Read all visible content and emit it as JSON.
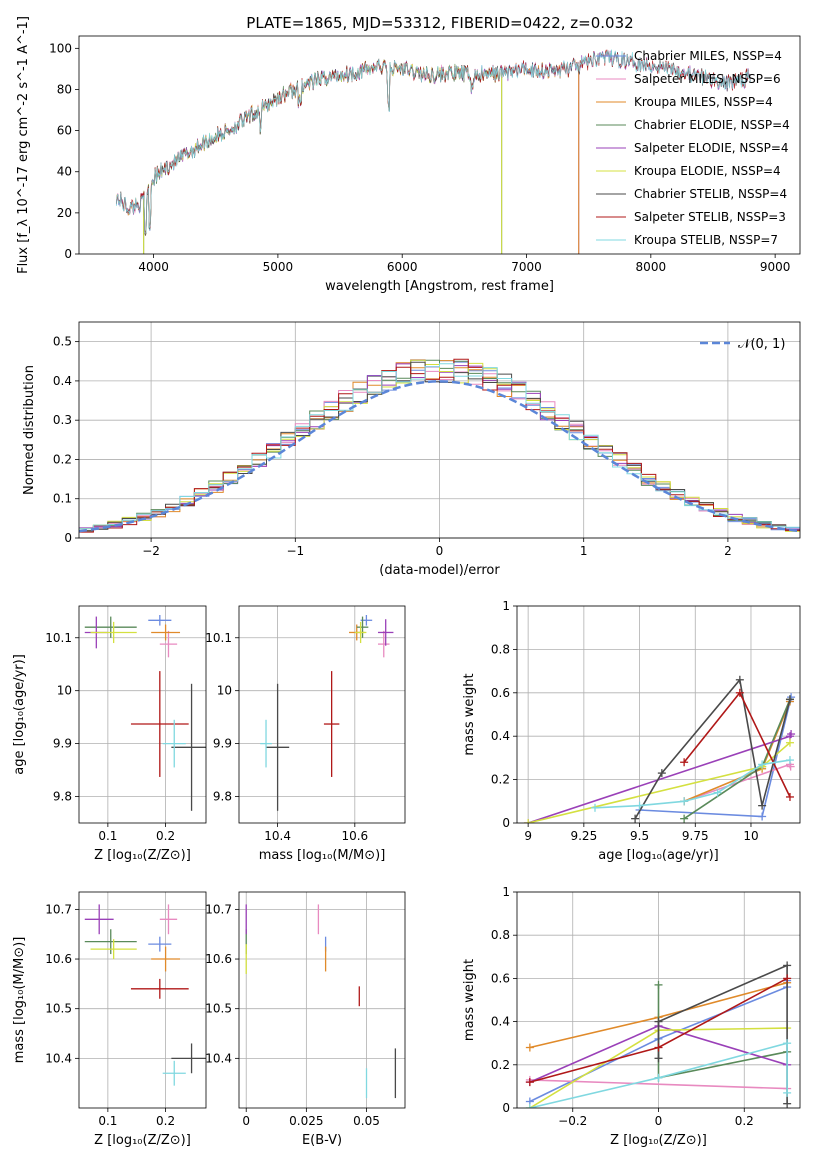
{
  "colors": {
    "chabrier_miles": "#6b8be0",
    "salpeter_miles": "#e88ac0",
    "kroupa_miles": "#e08a2a",
    "chabrier_elodie": "#5a8a5a",
    "salpeter_elodie": "#9a40b8",
    "kroupa_elodie": "#d4e040",
    "chabrier_stelib": "#4a4a4a",
    "salpeter_stelib": "#b01818",
    "kroupa_stelib": "#80d8e0",
    "gaussian": "#5b86d8",
    "grid": "#b0b0b0"
  },
  "chart_data": [
    {
      "id": "spectrum",
      "type": "line",
      "title": "PLATE=1865, MJD=53312, FIBERID=0422, z=0.032",
      "xlabel": "wavelength [Angstrom, rest frame]",
      "ylabel": "Flux [f_λ 10^-17 erg cm^-2 s^-1 A^-1]",
      "xlim": [
        3400,
        9200
      ],
      "ylim": [
        0,
        106
      ],
      "xticks": [
        4000,
        5000,
        6000,
        7000,
        8000,
        9000
      ],
      "yticks": [
        0,
        20,
        40,
        60,
        80,
        100
      ],
      "grid": false,
      "legend_position": "right",
      "series_names": [
        "Chabrier MILES, N_SSP=4",
        "Salpeter MILES, N_SSP=6",
        "Kroupa MILES, N_SSP=4",
        "Chabrier ELODIE, N_SSP=4",
        "Salpeter ELODIE, N_SSP=4",
        "Kroupa ELODIE, N_SSP=4",
        "Chabrier STELIB, N_SSP=4",
        "Salpeter STELIB, N_SSP=3",
        "Kroupa STELIB, N_SSP=7"
      ],
      "continuum": {
        "wavelength": [
          3700,
          3800,
          3900,
          4000,
          4100,
          4200,
          4400,
          4600,
          4800,
          5000,
          5200,
          5400,
          5600,
          5800,
          6000,
          6200,
          6400,
          6600,
          6800,
          7000,
          7200,
          7400,
          7600,
          7800,
          8000,
          8200,
          8400,
          8600,
          8800,
          9000
        ],
        "flux": [
          28,
          22,
          25,
          37,
          42,
          46,
          54,
          60,
          68,
          76,
          82,
          86,
          88,
          91,
          90,
          87,
          88,
          87,
          88,
          90,
          89,
          91,
          96,
          94,
          92,
          90,
          86,
          83,
          86,
          88
        ]
      },
      "model_range": {
        "Chabrier MILES, N_SSP=4": [
          3700,
          7420
        ],
        "Salpeter MILES, N_SSP=6": [
          3700,
          7420
        ],
        "Kroupa MILES, N_SSP=4": [
          3700,
          7420
        ],
        "Kroupa ELODIE, N_SSP=4": [
          3920,
          6800
        ],
        "Chabrier ELODIE, N_SSP=4": [
          3920,
          6800
        ]
      }
    },
    {
      "id": "residuals",
      "type": "step-histogram",
      "xlabel": "(data-model)/error",
      "ylabel": "Normed distribution",
      "xlim": [
        -2.5,
        2.5
      ],
      "ylim": [
        0,
        0.55
      ],
      "xticks": [
        -2,
        -1,
        0,
        1,
        2
      ],
      "yticks": [
        0.0,
        0.1,
        0.2,
        0.3,
        0.4,
        0.5
      ],
      "grid": true,
      "legend_position": "upper right",
      "bin_width": 0.1,
      "legend_label": "𝒩(0, 1)",
      "gaussian": {
        "mean": 0,
        "sigma": 1
      }
    },
    {
      "id": "age_vs_z",
      "type": "errorbar",
      "xlabel": "Z [log₁₀(Z/Z⊙)]",
      "ylabel": "age  [log₁₀(age/yr)]",
      "xlim": [
        0.05,
        0.27
      ],
      "ylim": [
        9.75,
        10.16
      ],
      "xticks": [
        0.1,
        0.2
      ],
      "yticks": [
        9.8,
        9.9,
        10.0,
        10.1
      ],
      "grid": true,
      "points": [
        {
          "series": "Chabrier MILES",
          "x": 0.19,
          "y": 10.133,
          "xerr": 0.02,
          "yerr": 0.01
        },
        {
          "series": "Salpeter MILES",
          "x": 0.205,
          "y": 10.088,
          "xerr": 0.015,
          "yerr": 0.025
        },
        {
          "series": "Kroupa MILES",
          "x": 0.2,
          "y": 10.11,
          "xerr": 0.025,
          "yerr": 0.015
        },
        {
          "series": "Chabrier ELODIE",
          "x": 0.105,
          "y": 10.12,
          "xerr": 0.045,
          "yerr": 0.02
        },
        {
          "series": "Salpeter ELODIE",
          "x": 0.08,
          "y": 10.11,
          "xerr": 0.02,
          "yerr": 0.03
        },
        {
          "series": "Kroupa ELODIE",
          "x": 0.11,
          "y": 10.11,
          "xerr": 0.04,
          "yerr": 0.02
        },
        {
          "series": "Chabrier STELIB",
          "x": 0.245,
          "y": 9.893,
          "xerr": 0.035,
          "yerr": 0.12
        },
        {
          "series": "Salpeter STELIB",
          "x": 0.19,
          "y": 9.937,
          "xerr": 0.05,
          "yerr": 0.1
        },
        {
          "series": "Kroupa STELIB",
          "x": 0.215,
          "y": 9.9,
          "xerr": 0.02,
          "yerr": 0.045
        }
      ]
    },
    {
      "id": "age_vs_mass",
      "type": "errorbar",
      "xlabel": "mass [log₁₀(M/M⊙)]",
      "ylabel": "",
      "xlim": [
        10.3,
        10.73
      ],
      "ylim": [
        9.75,
        10.16
      ],
      "xticks": [
        10.4,
        10.6
      ],
      "yticks": [
        9.8,
        9.9,
        10.0,
        10.1
      ],
      "grid": true,
      "points": [
        {
          "series": "Chabrier MILES",
          "x": 10.63,
          "y": 10.133,
          "xerr": 0.015,
          "yerr": 0.01
        },
        {
          "series": "Salpeter MILES",
          "x": 10.675,
          "y": 10.088,
          "xerr": 0.015,
          "yerr": 0.025
        },
        {
          "series": "Kroupa MILES",
          "x": 10.605,
          "y": 10.11,
          "xerr": 0.02,
          "yerr": 0.015
        },
        {
          "series": "Chabrier ELODIE",
          "x": 10.62,
          "y": 10.12,
          "xerr": 0.015,
          "yerr": 0.02
        },
        {
          "series": "Salpeter ELODIE",
          "x": 10.68,
          "y": 10.11,
          "xerr": 0.02,
          "yerr": 0.025
        },
        {
          "series": "Kroupa ELODIE",
          "x": 10.615,
          "y": 10.11,
          "xerr": 0.015,
          "yerr": 0.02
        },
        {
          "series": "Chabrier STELIB",
          "x": 10.4,
          "y": 9.893,
          "xerr": 0.03,
          "yerr": 0.12
        },
        {
          "series": "Salpeter STELIB",
          "x": 10.54,
          "y": 9.937,
          "xerr": 0.02,
          "yerr": 0.1
        },
        {
          "series": "Kroupa STELIB",
          "x": 10.37,
          "y": 9.9,
          "xerr": 0.015,
          "yerr": 0.045
        }
      ]
    },
    {
      "id": "mass_weight_vs_age",
      "type": "line",
      "xlabel": "age  [log₁₀(age/yr)]",
      "ylabel": "mass weight",
      "xlim": [
        8.95,
        10.22
      ],
      "ylim": [
        0,
        1.0
      ],
      "xticks": [
        9.0,
        9.25,
        9.5,
        9.75,
        10.0
      ],
      "yticks": [
        0.0,
        0.2,
        0.4,
        0.6,
        0.8,
        1.0
      ],
      "grid": true,
      "series": [
        {
          "name": "Chabrier MILES",
          "x": [
            9.5,
            10.05,
            10.175,
            10.18
          ],
          "y": [
            0.06,
            0.03,
            0.56,
            0.58
          ]
        },
        {
          "name": "Salpeter MILES",
          "x": [
            9.7,
            10.175,
            10.178
          ],
          "y": [
            0.1,
            0.27,
            0.26
          ]
        },
        {
          "name": "Kroupa MILES",
          "x": [
            9.7,
            10.05,
            10.175
          ],
          "y": [
            0.1,
            0.25,
            0.56
          ]
        },
        {
          "name": "Chabrier ELODIE",
          "x": [
            9.7,
            10.05,
            10.175
          ],
          "y": [
            0.02,
            0.26,
            0.57
          ]
        },
        {
          "name": "Salpeter ELODIE",
          "x": [
            9.0,
            10.175,
            10.18
          ],
          "y": [
            0.0,
            0.4,
            0.41
          ]
        },
        {
          "name": "Kroupa ELODIE",
          "x": [
            9.0,
            10.05,
            10.175
          ],
          "y": [
            0.0,
            0.26,
            0.37
          ]
        },
        {
          "name": "Chabrier STELIB",
          "x": [
            9.48,
            9.6,
            9.95,
            10.05,
            10.175
          ],
          "y": [
            0.02,
            0.23,
            0.66,
            0.08,
            0.57
          ]
        },
        {
          "name": "Salpeter STELIB",
          "x": [
            9.7,
            9.95,
            10.175
          ],
          "y": [
            0.28,
            0.6,
            0.12
          ]
        },
        {
          "name": "Kroupa STELIB",
          "x": [
            9.3,
            9.5,
            9.7,
            9.85,
            10.05,
            10.175
          ],
          "y": [
            0.07,
            0.08,
            0.1,
            0.14,
            0.27,
            0.29
          ]
        }
      ]
    },
    {
      "id": "mass_vs_z",
      "type": "errorbar",
      "xlabel": "Z [log₁₀(Z/Z⊙)]",
      "ylabel": "mass [log₁₀(M/M⊙)]",
      "xlim": [
        0.05,
        0.27
      ],
      "ylim": [
        10.3,
        10.735
      ],
      "xticks": [
        0.1,
        0.2
      ],
      "yticks": [
        10.4,
        10.5,
        10.6,
        10.7
      ],
      "grid": true,
      "points": [
        {
          "series": "Chabrier MILES",
          "x": 0.19,
          "y": 10.63,
          "xerr": 0.02,
          "yerr": 0.015
        },
        {
          "series": "Salpeter MILES",
          "x": 0.205,
          "y": 10.68,
          "xerr": 0.015,
          "yerr": 0.03
        },
        {
          "series": "Kroupa MILES",
          "x": 0.2,
          "y": 10.6,
          "xerr": 0.025,
          "yerr": 0.025
        },
        {
          "series": "Chabrier ELODIE",
          "x": 0.105,
          "y": 10.635,
          "xerr": 0.045,
          "yerr": 0.025
        },
        {
          "series": "Salpeter ELODIE",
          "x": 0.085,
          "y": 10.68,
          "xerr": 0.025,
          "yerr": 0.03
        },
        {
          "series": "Kroupa ELODIE",
          "x": 0.11,
          "y": 10.62,
          "xerr": 0.04,
          "yerr": 0.02
        },
        {
          "series": "Chabrier STELIB",
          "x": 0.245,
          "y": 10.4,
          "xerr": 0.035,
          "yerr": 0.03
        },
        {
          "series": "Salpeter STELIB",
          "x": 0.19,
          "y": 10.54,
          "xerr": 0.05,
          "yerr": 0.02
        },
        {
          "series": "Kroupa STELIB",
          "x": 0.215,
          "y": 10.37,
          "xerr": 0.02,
          "yerr": 0.025
        }
      ]
    },
    {
      "id": "mass_vs_ebv",
      "type": "errorbar",
      "xlabel": "E(B-V)",
      "ylabel": "",
      "xlim": [
        -0.003,
        0.066
      ],
      "ylim": [
        10.3,
        10.735
      ],
      "xticks": [
        0.0,
        0.025,
        0.05
      ],
      "yticks": [
        10.4,
        10.5,
        10.6,
        10.7
      ],
      "grid": true,
      "points": [
        {
          "series": "Chabrier MILES",
          "x": 0.033,
          "y": 10.63,
          "xerr": 0.0,
          "yerr": 0.015
        },
        {
          "series": "Salpeter MILES",
          "x": 0.03,
          "y": 10.68,
          "xerr": 0.0,
          "yerr": 0.03
        },
        {
          "series": "Kroupa MILES",
          "x": 0.033,
          "y": 10.6,
          "xerr": 0.0,
          "yerr": 0.025
        },
        {
          "series": "Chabrier ELODIE",
          "x": 0.0,
          "y": 10.635,
          "xerr": 0.0,
          "yerr": 0.025
        },
        {
          "series": "Salpeter ELODIE",
          "x": 0.0,
          "y": 10.68,
          "xerr": 0.0,
          "yerr": 0.03
        },
        {
          "series": "Kroupa ELODIE",
          "x": 0.0,
          "y": 10.6,
          "xerr": 0.0,
          "yerr": 0.03
        },
        {
          "series": "Chabrier STELIB",
          "x": 0.062,
          "y": 10.37,
          "xerr": 0.0,
          "yerr": 0.05
        },
        {
          "series": "Salpeter STELIB",
          "x": 0.047,
          "y": 10.525,
          "xerr": 0.0,
          "yerr": 0.02
        },
        {
          "series": "Kroupa STELIB",
          "x": 0.05,
          "y": 10.35,
          "xerr": 0.0,
          "yerr": 0.03
        }
      ]
    },
    {
      "id": "mass_weight_vs_z",
      "type": "line",
      "xlabel": "Z [log₁₀(Z/Z⊙)]",
      "ylabel": "mass weight",
      "xlim": [
        -0.33,
        0.33
      ],
      "ylim": [
        0,
        1.0
      ],
      "xticks": [
        -0.2,
        0.0,
        0.2
      ],
      "yticks": [
        0.0,
        0.2,
        0.4,
        0.6,
        0.8,
        1.0
      ],
      "grid": true,
      "series": [
        {
          "name": "Chabrier MILES",
          "x": [
            -0.3,
            0.0,
            0.3,
            0.3
          ],
          "y": [
            0.03,
            0.32,
            0.56,
            0.59
          ]
        },
        {
          "name": "Salpeter MILES",
          "x": [
            -0.3,
            0.3
          ],
          "y": [
            0.13,
            0.09
          ]
        },
        {
          "name": "Kroupa MILES",
          "x": [
            -0.3,
            0.0,
            0.3
          ],
          "y": [
            0.28,
            0.42,
            0.58
          ]
        },
        {
          "name": "Chabrier ELODIE",
          "x": [
            0.0,
            0.0,
            0.3
          ],
          "y": [
            0.57,
            0.14,
            0.26
          ]
        },
        {
          "name": "Salpeter ELODIE",
          "x": [
            -0.3,
            0.0,
            0.3
          ],
          "y": [
            0.12,
            0.38,
            0.2
          ]
        },
        {
          "name": "Kroupa ELODIE",
          "x": [
            -0.3,
            0.0,
            0.3
          ],
          "y": [
            0.0,
            0.36,
            0.37
          ]
        },
        {
          "name": "Chabrier STELIB",
          "x": [
            0.0,
            0.0,
            0.3,
            0.3
          ],
          "y": [
            0.23,
            0.4,
            0.66,
            0.02
          ]
        },
        {
          "name": "Salpeter STELIB",
          "x": [
            -0.3,
            0.0,
            0.3
          ],
          "y": [
            0.12,
            0.28,
            0.6
          ]
        },
        {
          "name": "Kroupa STELIB",
          "x": [
            -0.3,
            0.0,
            0.3,
            0.3
          ],
          "y": [
            0.0,
            0.14,
            0.3,
            0.07
          ]
        }
      ]
    }
  ]
}
